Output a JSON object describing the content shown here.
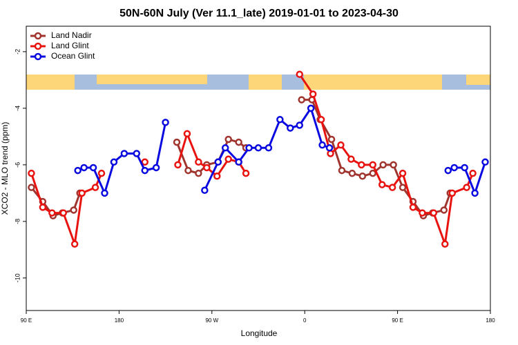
{
  "chart_data": {
    "type": "line",
    "title": "50N-60N July (Ver 11.1_late)   2019-01-01 to 2023-04-30",
    "x_label": "Longitude",
    "y_label": "XCO2 - MLO trend (ppm)",
    "xlim": [
      90,
      540
    ],
    "ylim": [
      -11.15,
      -1.1
    ],
    "xticks": [
      {
        "value": 90,
        "label": "90 E"
      },
      {
        "value": 180,
        "label": "180"
      },
      {
        "value": 270,
        "label": "90 W"
      },
      {
        "value": 360,
        "label": "0"
      },
      {
        "value": 450,
        "label": "90 E"
      },
      {
        "value": 540,
        "label": "180"
      }
    ],
    "yticks": [
      -10,
      -8,
      -6,
      -4,
      -2
    ],
    "legend": "upper left",
    "series": [
      {
        "name": "Land Nadir",
        "color": "#a0342e",
        "x": [
          95,
          106,
          116,
          125,
          136,
          142,
          null,
          236,
          247,
          257,
          265,
          276,
          286,
          296,
          303,
          null,
          357,
          367,
          375,
          386,
          396,
          406,
          416,
          426,
          436,
          446,
          455,
          465,
          475,
          484,
          495,
          501
        ],
        "values": [
          -6.8,
          -7.3,
          -7.8,
          -7.7,
          -7.6,
          -7.0,
          null,
          -5.2,
          -6.2,
          -6.3,
          -6.0,
          -5.9,
          -5.1,
          -5.2,
          -5.4,
          null,
          -3.7,
          -3.7,
          -4.4,
          -5.1,
          -6.2,
          -6.3,
          -6.4,
          -6.3,
          -6.0,
          -6.0,
          -6.8,
          -7.3,
          -7.8,
          -7.7,
          -7.6,
          -7.0
        ]
      },
      {
        "name": "Land Glint",
        "color": "#e8120f",
        "x": [
          95,
          106,
          115,
          126,
          137,
          144,
          157,
          163,
          null,
          205,
          null,
          237,
          246,
          257,
          265,
          275,
          286,
          296,
          303,
          null,
          355,
          368,
          376,
          385,
          395,
          405,
          415,
          426,
          435,
          445,
          455,
          465,
          474,
          485,
          496,
          503,
          517,
          523
        ],
        "values": [
          -6.3,
          -7.5,
          -7.7,
          -7.7,
          -8.8,
          -7.0,
          -6.8,
          -6.3,
          null,
          -5.9,
          null,
          -6.0,
          -4.9,
          -5.9,
          -6.1,
          -6.4,
          -5.8,
          -5.9,
          -6.3,
          null,
          -2.8,
          -3.5,
          -4.4,
          -5.6,
          -5.3,
          -5.8,
          -6.0,
          -6.0,
          -6.7,
          -6.8,
          -6.3,
          -7.5,
          -7.7,
          -7.7,
          -8.8,
          -7.0,
          -6.8,
          -6.3
        ]
      },
      {
        "name": "Ocean Glint",
        "color": "#0a0ae0",
        "x": [
          140,
          146,
          155,
          166,
          175,
          185,
          197,
          205,
          216,
          225,
          null,
          263,
          276,
          283,
          296,
          306,
          315,
          325,
          336,
          346,
          355,
          366,
          377,
          384,
          null,
          499,
          505,
          515,
          525,
          535
        ],
        "values": [
          -6.2,
          -6.1,
          -6.1,
          -7.0,
          -5.9,
          -5.6,
          -5.6,
          -6.2,
          -6.1,
          -4.5,
          null,
          -6.9,
          -5.9,
          -5.4,
          -5.9,
          -5.4,
          -5.4,
          -5.4,
          -4.4,
          -4.7,
          -4.6,
          -4.0,
          -5.3,
          -5.4,
          null,
          -6.2,
          -6.1,
          -6.1,
          -7.0,
          -5.9
        ]
      }
    ]
  }
}
